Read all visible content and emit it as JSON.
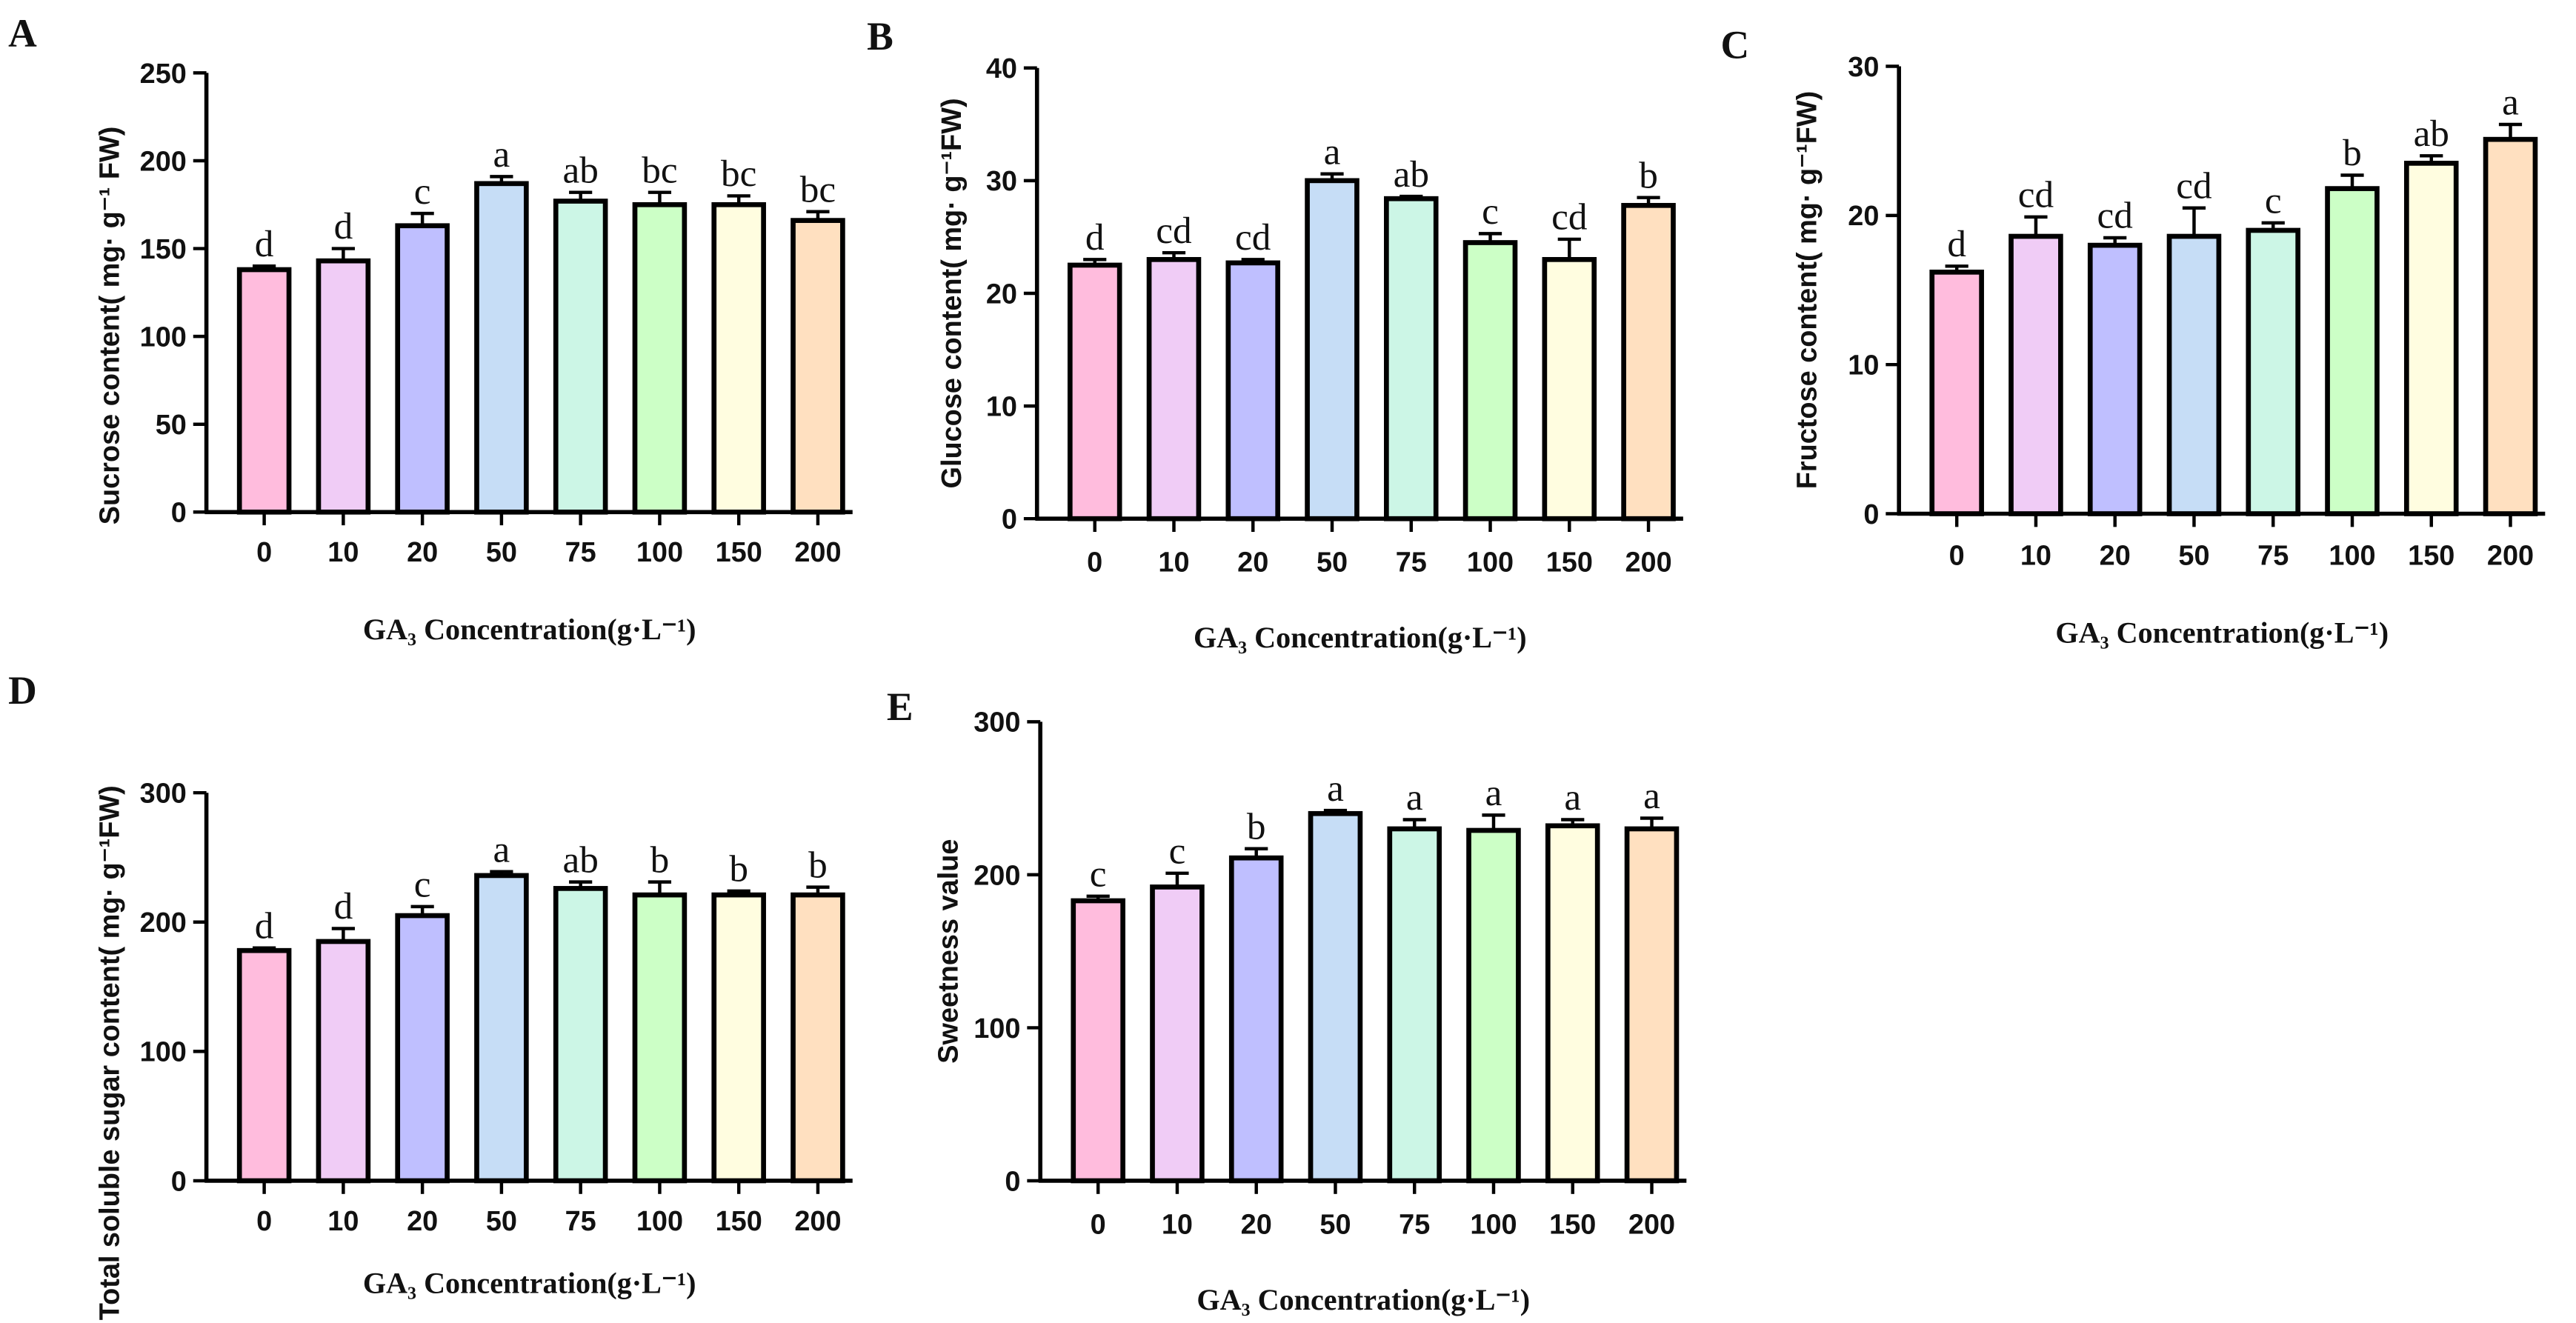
{
  "chart_data": [
    {
      "panel": "A",
      "type": "bar",
      "categories": [
        "0",
        "10",
        "20",
        "50",
        "75",
        "100",
        "150",
        "200"
      ],
      "values": [
        138,
        143,
        163,
        187,
        177,
        175,
        175,
        166
      ],
      "errors": [
        2,
        7,
        7,
        4,
        5,
        7,
        5,
        5
      ],
      "letters": [
        "d",
        "d",
        "c",
        "a",
        "ab",
        "bc",
        "bc",
        "bc"
      ],
      "ylabel": "Sucrose content( mg· g⁻¹ FW)",
      "xlabel": "GA₃ Concentration(g·L⁻¹)",
      "ylim": [
        0,
        250
      ],
      "yticks": [
        0,
        50,
        100,
        150,
        200,
        250
      ]
    },
    {
      "panel": "B",
      "type": "bar",
      "categories": [
        "0",
        "10",
        "20",
        "50",
        "75",
        "100",
        "150",
        "200"
      ],
      "values": [
        22.5,
        23,
        22.7,
        30,
        28.4,
        24.5,
        23,
        27.8
      ],
      "errors": [
        0.5,
        0.6,
        0.3,
        0.6,
        0.2,
        0.8,
        1.8,
        0.7
      ],
      "letters": [
        "d",
        "cd",
        "cd",
        "a",
        "ab",
        "c",
        "cd",
        "b"
      ],
      "ylabel": "Glucose content( mg· g⁻¹FW)",
      "xlabel": "GA₃ Concentration(g·L⁻¹)",
      "ylim": [
        0,
        40
      ],
      "yticks": [
        0,
        10,
        20,
        30,
        40
      ]
    },
    {
      "panel": "C",
      "type": "bar",
      "categories": [
        "0",
        "10",
        "20",
        "50",
        "75",
        "100",
        "150",
        "200"
      ],
      "values": [
        16.2,
        18.6,
        18,
        18.6,
        19,
        21.8,
        23.5,
        25.1
      ],
      "errors": [
        0.4,
        1.3,
        0.5,
        1.9,
        0.5,
        0.9,
        0.5,
        1.0
      ],
      "letters": [
        "d",
        "cd",
        "cd",
        "cd",
        "c",
        "b",
        "ab",
        "a"
      ],
      "ylabel": "Fructose content( mg· g⁻¹FW)",
      "xlabel": "GA₃ Concentration(g·L⁻¹)",
      "ylim": [
        0,
        30
      ],
      "yticks": [
        0,
        10,
        20,
        30
      ]
    },
    {
      "panel": "D",
      "type": "bar",
      "categories": [
        "0",
        "10",
        "20",
        "50",
        "75",
        "100",
        "150",
        "200"
      ],
      "values": [
        178,
        185,
        205,
        236,
        226,
        221,
        221,
        221
      ],
      "errors": [
        2,
        10,
        7,
        3,
        5,
        10,
        3,
        6
      ],
      "letters": [
        "d",
        "d",
        "c",
        "a",
        "ab",
        "b",
        "b",
        "b"
      ],
      "ylabel": "Total soluble sugar content( mg· g⁻¹FW)",
      "xlabel": "GA₃ Concentration(g·L⁻¹)",
      "ylim": [
        0,
        300
      ],
      "yticks": [
        0,
        100,
        200,
        300
      ]
    },
    {
      "panel": "E",
      "type": "bar",
      "categories": [
        "0",
        "10",
        "20",
        "50",
        "75",
        "100",
        "150",
        "200"
      ],
      "values": [
        183,
        192,
        211,
        240,
        230,
        229,
        232,
        230
      ],
      "errors": [
        3,
        9,
        6,
        2,
        6,
        10,
        4,
        7
      ],
      "letters": [
        "c",
        "c",
        "b",
        "a",
        "a",
        "a",
        "a",
        "a"
      ],
      "ylabel": "Sweetness value",
      "xlabel": "GA₃ Concentration(g·L⁻¹)",
      "ylim": [
        0,
        300
      ],
      "yticks": [
        0,
        100,
        200,
        300
      ]
    }
  ],
  "bar_colors": [
    "#FFBCDD",
    "#F0CCF6",
    "#BFBFFF",
    "#C6DDF6",
    "#CCF6E6",
    "#CCFFC6",
    "#FFFDE0",
    "#FFE0C0"
  ]
}
